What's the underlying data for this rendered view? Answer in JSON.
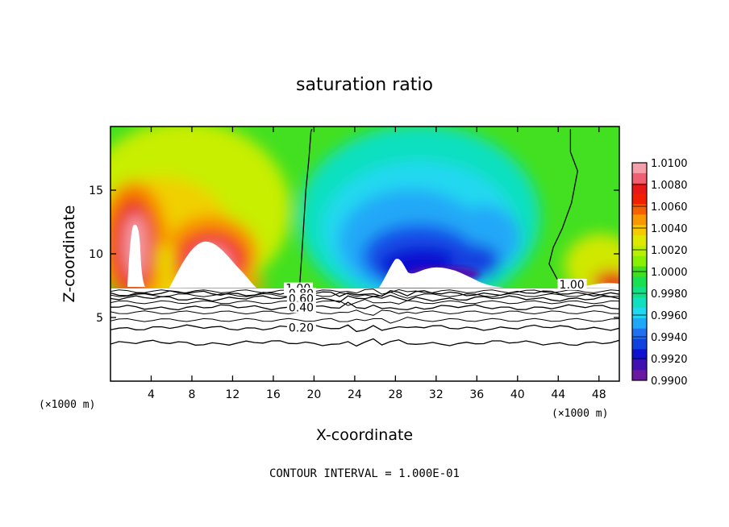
{
  "chart_data": {
    "type": "heatmap",
    "title": "saturation ratio",
    "xlabel": "X-coordinate",
    "ylabel": "Z-coordinate",
    "x_unit_left": "(×1000 m)",
    "x_unit_right": "(×1000 m)",
    "xlim": [
      0,
      50
    ],
    "ylim": [
      0,
      20
    ],
    "x_ticks": [
      4,
      8,
      12,
      16,
      20,
      24,
      28,
      32,
      36,
      40,
      44,
      48
    ],
    "y_ticks": [
      5,
      10,
      15
    ],
    "colorbar": {
      "min": 0.99,
      "max": 1.01,
      "labels": [
        "1.0100",
        "1.0080",
        "1.0060",
        "1.0040",
        "1.0020",
        "1.0000",
        "0.9980",
        "0.9960",
        "0.9940",
        "0.9920",
        "0.9900"
      ],
      "colors": [
        "#f5a0a8",
        "#f06070",
        "#e81818",
        "#f02000",
        "#f56000",
        "#f89800",
        "#f8c800",
        "#e0e800",
        "#b8f000",
        "#88f000",
        "#40e020",
        "#18e050",
        "#10e088",
        "#10e0c0",
        "#20d8f0",
        "#20a8f8",
        "#2070f0",
        "#1040e0",
        "#1010d0",
        "#4010b0",
        "#6a1aa0"
      ]
    },
    "contour_lines": [
      {
        "label": "1.00",
        "z": [
          19.8,
          19.6,
          17.5,
          15.0,
          12.5,
          10.0,
          7.6,
          7.4
        ],
        "x": [
          19.8,
          19.7,
          19.5,
          19.2,
          19.0,
          18.8,
          18.6,
          17.5
        ],
        "label_x": 17.2,
        "label_z": 7.3
      },
      {
        "label": "1.00",
        "z": [
          19.8,
          18.0,
          16.5,
          14.0,
          12.0,
          10.5,
          9.2,
          8.0
        ],
        "x": [
          45.2,
          45.2,
          45.9,
          45.3,
          44.4,
          43.5,
          43.1,
          43.9
        ],
        "label_x": 44.1,
        "label_z": 7.6
      },
      {
        "label": "0.80",
        "z": 6.9,
        "label_x": 17.5
      },
      {
        "label": "0.60",
        "z": 6.5,
        "label_x": 17.5
      },
      {
        "label": "0.40",
        "z": 5.8,
        "label_x": 17.5
      },
      {
        "label": "0.20",
        "z": 4.2,
        "label_x": 17.5
      },
      {
        "label": "",
        "z": 3.0
      }
    ],
    "footer": "CONTOUR INTERVAL = 1.000E-01"
  }
}
